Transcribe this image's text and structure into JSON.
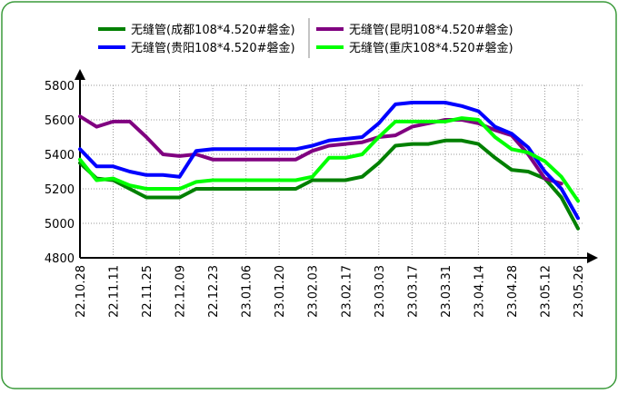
{
  "chart_data": {
    "type": "line",
    "categories": [
      "22.10.28",
      null,
      "22.11.11",
      null,
      "22.11.25",
      null,
      "22.12.09",
      null,
      "22.12.23",
      null,
      "23.01.06",
      null,
      "23.01.20",
      null,
      "23.02.03",
      null,
      "23.02.17",
      null,
      "23.03.03",
      null,
      "23.03.17",
      null,
      "23.03.31",
      null,
      "23.04.14",
      null,
      "23.04.28",
      null,
      "23.05.12",
      null,
      "23.05.26"
    ],
    "series": [
      {
        "name": "无缝管(成都108*4.520#磐金)",
        "color": "#008000",
        "values": [
          5350,
          5260,
          5250,
          5200,
          5150,
          5150,
          5150,
          5200,
          5200,
          5200,
          5200,
          5200,
          5200,
          5200,
          5250,
          5250,
          5250,
          5270,
          5350,
          5450,
          5460,
          5460,
          5480,
          5480,
          5460,
          5380,
          5310,
          5300,
          5260,
          5150,
          4970
        ]
      },
      {
        "name": "无缝管(昆明108*4.520#磐金)",
        "color": "#800080",
        "values": [
          5620,
          5560,
          5590,
          5590,
          5500,
          5400,
          5390,
          5400,
          5370,
          5370,
          5370,
          5370,
          5370,
          5370,
          5420,
          5450,
          5460,
          5470,
          5500,
          5510,
          5560,
          5580,
          5600,
          5600,
          5580,
          5540,
          5510,
          5400,
          5260,
          5230,
          null
        ]
      },
      {
        "name": "无缝管(贵阳108*4.520#磐金)",
        "color": "#0000ff",
        "values": [
          5430,
          5330,
          5330,
          5300,
          5280,
          5280,
          5270,
          5420,
          5430,
          5430,
          5430,
          5430,
          5430,
          5430,
          5450,
          5480,
          5490,
          5500,
          5580,
          5690,
          5700,
          5700,
          5700,
          5680,
          5650,
          5560,
          5520,
          5440,
          5300,
          5200,
          5030
        ]
      },
      {
        "name": "无缝管(重庆108*4.520#磐金)",
        "color": "#00ff00",
        "values": [
          5370,
          5250,
          5260,
          5220,
          5200,
          5200,
          5200,
          5240,
          5250,
          5250,
          5250,
          5250,
          5250,
          5250,
          5270,
          5380,
          5380,
          5400,
          5500,
          5590,
          5590,
          5590,
          5590,
          5610,
          5600,
          5500,
          5430,
          5410,
          5360,
          5270,
          5130
        ]
      }
    ],
    "ylim": [
      4800,
      5800
    ],
    "yticks": [
      4800,
      5000,
      5200,
      5400,
      5600,
      5800
    ],
    "grid": true
  }
}
